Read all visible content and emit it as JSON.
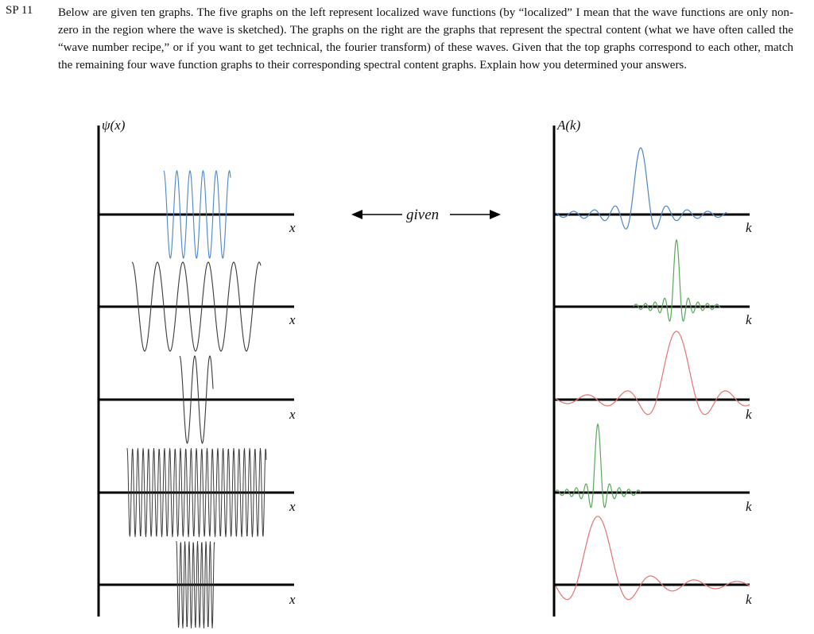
{
  "problem": {
    "label": "SP 11",
    "text": "Below are given ten graphs. The five graphs on the left represent localized wave functions (by “localized” I mean that the wave functions are only non-zero in the region where the wave is sketched). The graphs on the right are the graphs that represent the spectral content (what we have often called the “wave number recipe,” or if you want to get technical, the fourier transform) of these waves. Given that the top graphs correspond to each other, match the remaining four wave function graphs to their corresponding spectral content graphs. Explain how you determined your answers."
  },
  "figure": {
    "left_axis_label": "ψ(x)",
    "right_axis_label": "A(k)",
    "x_label": "x",
    "k_label": "k",
    "given_label": "given",
    "colors": {
      "blue": "#4a86c8",
      "black": "#3a3a3a",
      "green": "#5aa85a",
      "red": "#e57373"
    }
  }
}
